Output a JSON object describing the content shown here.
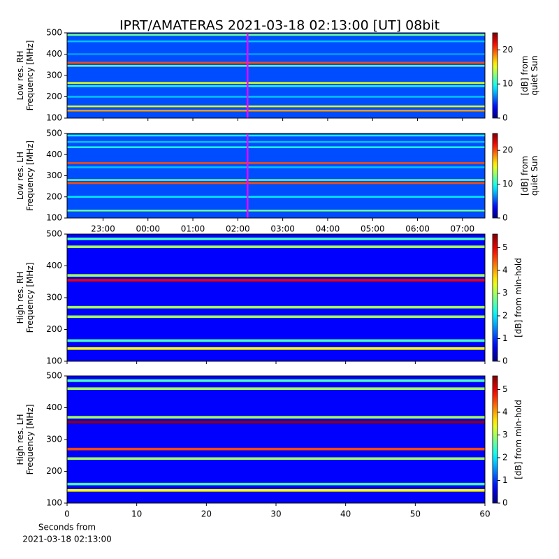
{
  "chart_data": [
    {
      "type": "heatmap",
      "title": "IPRT/AMATERAS 2021-03-18 02:13:00 [UT]   08bit",
      "ylabel": [
        "Low res. RH",
        "Frequency [MHz]"
      ],
      "ylim": [
        100,
        500
      ],
      "yticks": [
        100,
        200,
        300,
        400,
        500
      ],
      "xlim": [
        22.2,
        31.5
      ],
      "xticks": [
        23,
        24,
        25,
        26,
        27,
        28,
        29,
        30,
        31
      ],
      "background": 5,
      "band_freqs": [
        490,
        460,
        400,
        360,
        345,
        265,
        250,
        200,
        155,
        135
      ],
      "band_values": [
        12,
        8,
        7,
        20,
        12,
        15,
        10,
        8,
        15,
        18
      ],
      "marker_x": 26.2167,
      "marker_color": "#ff00ff",
      "cbar_lim": [
        0,
        25
      ],
      "cbar_ticks": [
        0,
        10,
        20
      ],
      "cbar_label": [
        "[dB] from",
        "quiet Sun"
      ]
    },
    {
      "type": "heatmap",
      "ylabel": [
        "Low res. LH",
        "Frequency [MHz]"
      ],
      "ylim": [
        100,
        500
      ],
      "yticks": [
        100,
        200,
        300,
        400,
        500
      ],
      "xlim": [
        22.2,
        31.5
      ],
      "xticks": [
        {
          "value": 23,
          "label": "23:00"
        },
        {
          "value": 24,
          "label": "00:00"
        },
        {
          "value": 25,
          "label": "01:00"
        },
        {
          "value": 26,
          "label": "02:00"
        },
        {
          "value": 27,
          "label": "03:00"
        },
        {
          "value": 28,
          "label": "04:00"
        },
        {
          "value": 29,
          "label": "05:00"
        },
        {
          "value": 30,
          "label": "06:00"
        },
        {
          "value": 31,
          "label": "07:00"
        }
      ],
      "background": 5,
      "band_freqs": [
        490,
        460,
        435,
        360,
        340,
        280,
        265,
        200,
        135
      ],
      "band_values": [
        10,
        8,
        10,
        20,
        8,
        12,
        20,
        9,
        12
      ],
      "marker_x": 26.2167,
      "marker_color": "#ff00ff",
      "cbar_lim": [
        0,
        25
      ],
      "cbar_ticks": [
        0,
        10,
        20
      ],
      "cbar_label": [
        "[dB] from",
        "quiet Sun"
      ]
    },
    {
      "type": "heatmap",
      "ylabel": [
        "High res. RH",
        "Frequency [MHz]"
      ],
      "ylim": [
        100,
        500
      ],
      "yticks": [
        100,
        200,
        300,
        400,
        500
      ],
      "xlim": [
        0,
        60
      ],
      "xticks": [
        0,
        10,
        20,
        30,
        40,
        50,
        60
      ],
      "background": 0.7,
      "band_freqs": [
        485,
        460,
        370,
        355,
        270,
        240,
        165,
        140
      ],
      "band_values": [
        2.5,
        3,
        3,
        5,
        3,
        3,
        2.5,
        3.5
      ],
      "cbar_lim": [
        0,
        5.6
      ],
      "cbar_ticks": [
        0,
        1,
        2,
        3,
        4,
        5
      ],
      "cbar_label": [
        "[dB] from min-hold"
      ]
    },
    {
      "type": "heatmap",
      "ylabel": [
        "High res. LH",
        "Frequency [MHz]"
      ],
      "ylim": [
        100,
        500
      ],
      "yticks": [
        100,
        200,
        300,
        400,
        500
      ],
      "xlim": [
        0,
        60
      ],
      "xticks": [
        0,
        10,
        20,
        30,
        40,
        50,
        60
      ],
      "xlabel": [
        "Seconds from",
        "2021-03-18 02:13:00"
      ],
      "background": 0.7,
      "band_freqs": [
        485,
        460,
        370,
        355,
        270,
        240,
        160,
        140
      ],
      "band_values": [
        2.5,
        3,
        3,
        5.5,
        4.5,
        3,
        2.5,
        3.5
      ],
      "cbar_lim": [
        0,
        5.6
      ],
      "cbar_ticks": [
        0,
        1,
        2,
        3,
        4,
        5
      ],
      "cbar_label": [
        "[dB] from min-hold"
      ]
    }
  ]
}
